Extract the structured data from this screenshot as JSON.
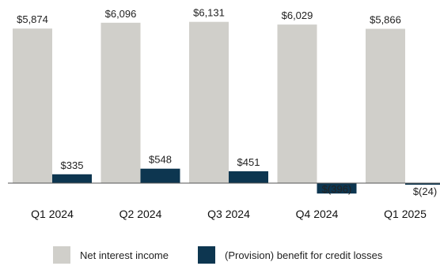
{
  "chart_data": {
    "type": "bar",
    "categories": [
      "Q1 2024",
      "Q2 2024",
      "Q3 2024",
      "Q4 2024",
      "Q1 2025"
    ],
    "series": [
      {
        "name": "Net interest income",
        "values": [
          5874,
          6096,
          6131,
          6029,
          5866
        ],
        "labels": [
          "$5,874",
          "$6,096",
          "$6,131",
          "$6,029",
          "$5,866"
        ],
        "color": "#d0cfca"
      },
      {
        "name": "(Provision) benefit for credit losses",
        "values": [
          335,
          548,
          451,
          -396,
          -24
        ],
        "labels": [
          "$335",
          "$548",
          "$451",
          "$(396)",
          "$(24)"
        ],
        "color": "#0d3650"
      }
    ],
    "title": "",
    "xlabel": "",
    "ylabel": "",
    "legend_position": "bottom",
    "grid": false
  }
}
